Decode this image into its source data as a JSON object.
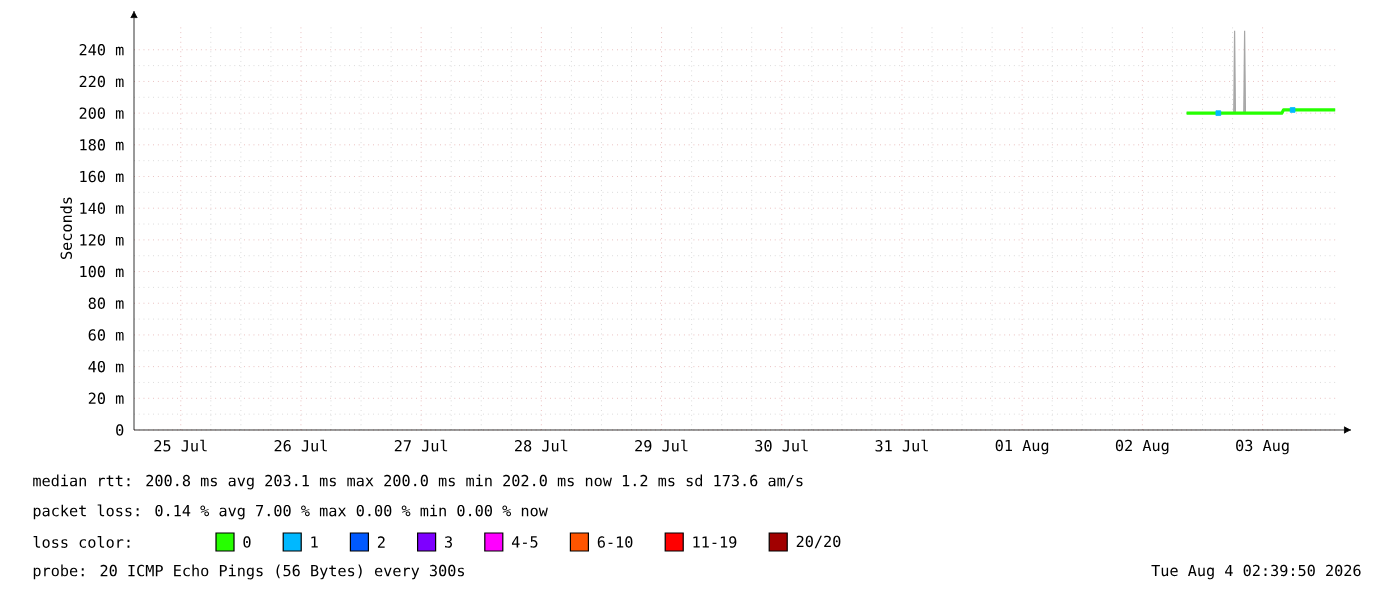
{
  "chart_data": {
    "type": "line",
    "ylabel": "Seconds",
    "legend_title": "loss color:",
    "xlim": [
      "2026-07-25T02:40",
      "2026-08-04T02:40"
    ],
    "xticks": [
      {
        "value": "2026-07-25T12:00",
        "label": "25 Jul"
      },
      {
        "value": "2026-07-26T12:00",
        "label": "26 Jul"
      },
      {
        "value": "2026-07-27T12:00",
        "label": "27 Jul"
      },
      {
        "value": "2026-07-28T12:00",
        "label": "28 Jul"
      },
      {
        "value": "2026-07-29T12:00",
        "label": "29 Jul"
      },
      {
        "value": "2026-07-30T12:00",
        "label": "30 Jul"
      },
      {
        "value": "2026-07-31T12:00",
        "label": "31 Jul"
      },
      {
        "value": "2026-08-01T12:00",
        "label": "01 Aug"
      },
      {
        "value": "2026-08-02T12:00",
        "label": "02 Aug"
      },
      {
        "value": "2026-08-03T12:00",
        "label": "03 Aug"
      }
    ],
    "ylim": [
      0,
      255
    ],
    "yticks": [
      0,
      {
        "value": 20,
        "label": "20 m"
      },
      {
        "value": 40,
        "label": "40 m"
      },
      {
        "value": 60,
        "label": "60 m"
      },
      {
        "value": 80,
        "label": "80 m"
      },
      {
        "value": 100,
        "label": "100 m"
      },
      {
        "value": 120,
        "label": "120 m"
      },
      {
        "value": 140,
        "label": "140 m"
      },
      {
        "value": 160,
        "label": "160 m"
      },
      {
        "value": 180,
        "label": "180 m"
      },
      {
        "value": 200,
        "label": "200 m"
      },
      {
        "value": 220,
        "label": "220 m"
      },
      {
        "value": 240,
        "label": "240 m"
      }
    ],
    "grid": true,
    "legend": "bottom",
    "series": [
      {
        "name": "0",
        "color": "#26ff00",
        "x": [
          "2026-08-02T20:50",
          "2026-08-02T23:00",
          "2026-08-03T01:00",
          "2026-08-03T03:00",
          "2026-08-03T05:00",
          "2026-08-03T06:15",
          "2026-08-03T06:25",
          "2026-08-03T06:35",
          "2026-08-03T08:15",
          "2026-08-03T08:25",
          "2026-08-03T08:35",
          "2026-08-03T10:00",
          "2026-08-03T12:00",
          "2026-08-03T14:00",
          "2026-08-03T15:50",
          "2026-08-03T16:10",
          "2026-08-03T18:00",
          "2026-08-03T20:00",
          "2026-08-03T22:00",
          "2026-08-04T00:00",
          "2026-08-04T02:30"
        ],
        "values": [
          200,
          200,
          200,
          200,
          200,
          200,
          200,
          200,
          200,
          200,
          200,
          200,
          200,
          200,
          200,
          202,
          202,
          202,
          202,
          202,
          202
        ],
        "lower": [
          200,
          200,
          200,
          200,
          200,
          200,
          200,
          200,
          200,
          200,
          200,
          200,
          200,
          200,
          200,
          202,
          202,
          202,
          202,
          202,
          202
        ],
        "upper": [
          200,
          200,
          200,
          200,
          200,
          200,
          252,
          200,
          200,
          252,
          200,
          200,
          200,
          200,
          200,
          202,
          202,
          202,
          202,
          202,
          202
        ]
      },
      {
        "name": "1",
        "color": "#00b8ff",
        "type": "scatter",
        "marker": "square",
        "x": [
          "2026-08-03T03:10",
          "2026-08-03T18:00"
        ],
        "values": [
          200,
          202
        ]
      },
      {
        "name": "2",
        "color": "#0059ff"
      },
      {
        "name": "3",
        "color": "#7e00ff"
      },
      {
        "name": "4-5",
        "color": "#ff00ff"
      },
      {
        "name": "6-10",
        "color": "#ff5500"
      },
      {
        "name": "11-19",
        "color": "#ff0000"
      },
      {
        "name": "20/20",
        "color": "#a10000"
      }
    ],
    "annotations": [
      "median rtt:  200.8 ms avg  203.1 ms max  200.0 ms min  202.0 ms now  1.2 ms sd  173.6   am/s",
      "packet loss: 0.14 % avg  7.00 % max  0.00 % min  0.00 % now",
      "probe:       20 ICMP Echo Pings (56 Bytes) every 300s",
      "Tue Aug  4 02:39:50 2026"
    ]
  }
}
